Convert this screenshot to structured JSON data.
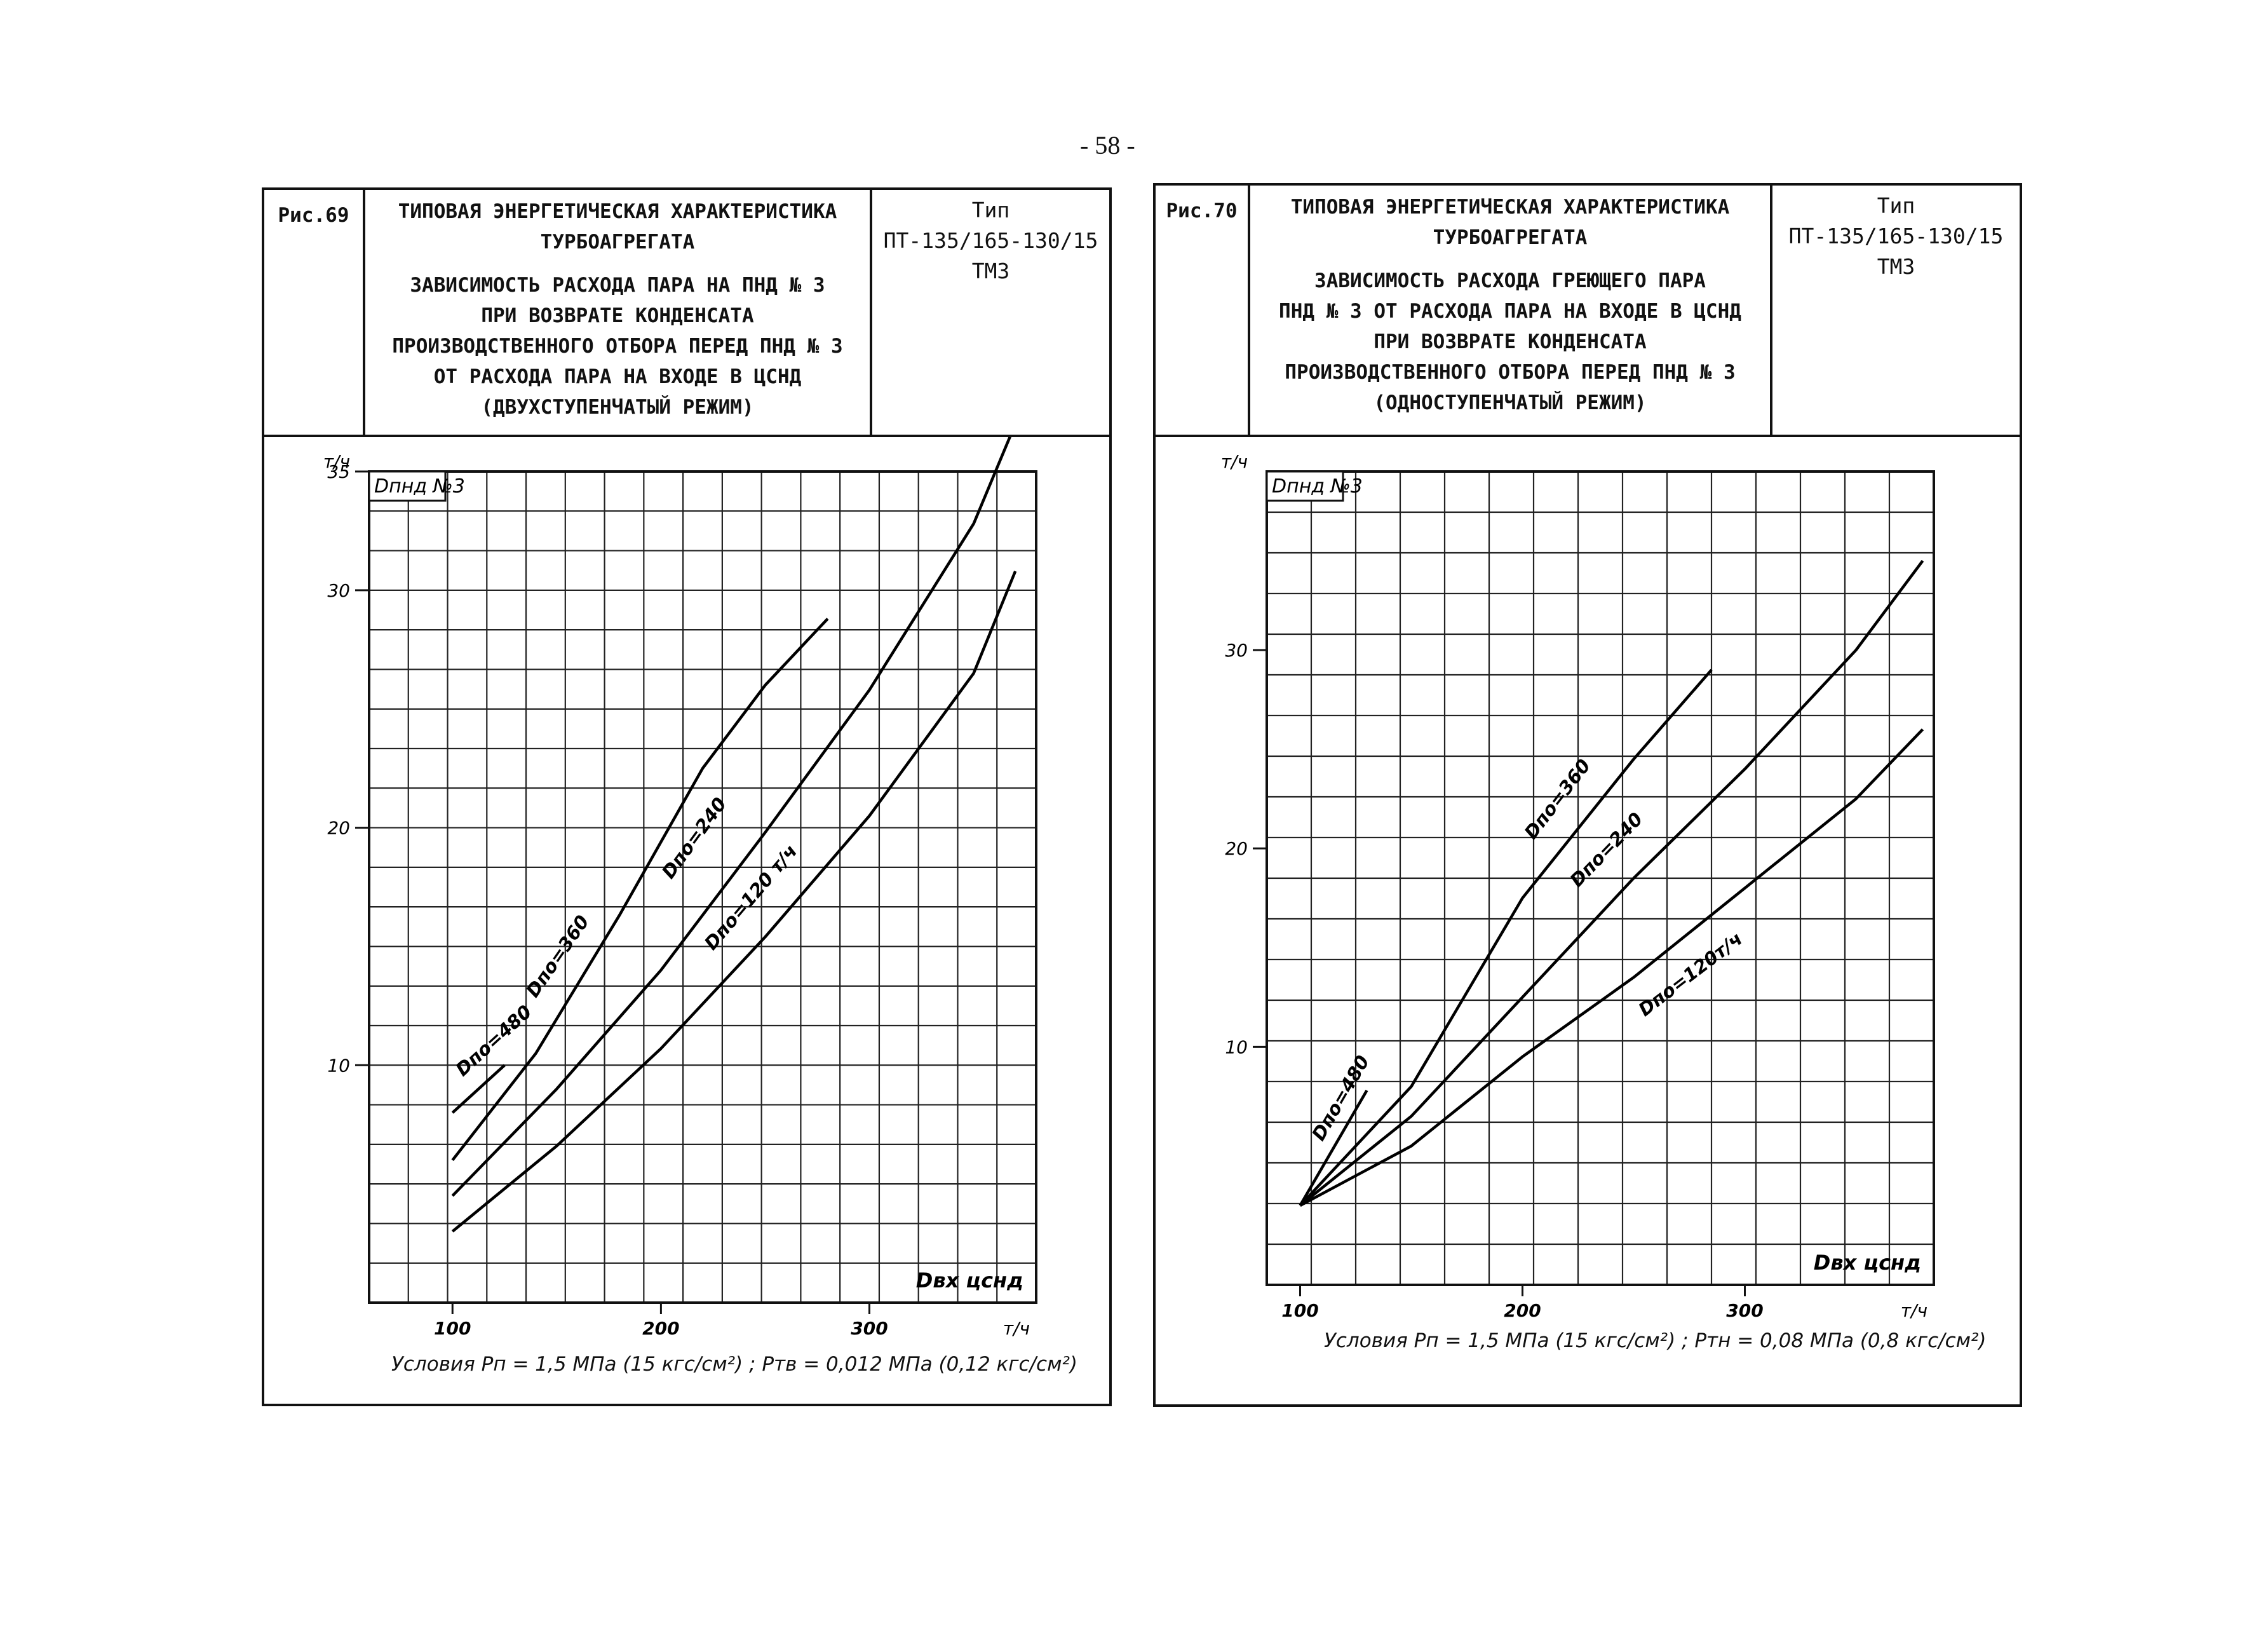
{
  "page_number": "- 58 -",
  "figures": [
    {
      "fig_label": "Рис.69",
      "title_lines": [
        "ТИПОВАЯ ЭНЕРГЕТИЧЕСКАЯ ХАРАКТЕРИСТИКА",
        "ТУРБОАГРЕГАТА"
      ],
      "subtitle_lines": [
        "ЗАВИСИМОСТЬ РАСХОДА ПАРА НА ПНД № 3",
        "ПРИ ВОЗВРАТЕ КОНДЕНСАТА",
        "ПРОИЗВОДСТВЕННОГО ОТБОРА ПЕРЕД ПНД № 3",
        "ОТ РАСХОДА ПАРА НА ВХОДЕ В ЦСНД",
        "(ДВУХСТУПЕНЧАТЫЙ РЕЖИМ)"
      ],
      "type_label": "Тип",
      "type_value": "ПТ-135/165-130/15",
      "manufacturer": "ТМЗ",
      "conditions": "Условия  Pп = 1,5 МПа (15 кгс/см²) ;  Pтв = 0,012 МПа (0,12 кгс/см²)"
    },
    {
      "fig_label": "Рис.70",
      "title_lines": [
        "ТИПОВАЯ ЭНЕРГЕТИЧЕСКАЯ ХАРАКТЕРИСТИКА",
        "ТУРБОАГРЕГАТА"
      ],
      "subtitle_lines": [
        "ЗАВИСИМОСТЬ РАСХОДА ГРЕЮЩЕГО ПАРА",
        "ПНД № 3 ОТ РАСХОДА ПАРА НА ВХОДЕ В ЦСНД",
        "ПРИ ВОЗВРАТЕ КОНДЕНСАТА",
        "ПРОИЗВОДСТВЕННОГО ОТБОРА ПЕРЕД ПНД № 3",
        "(ОДНОСТУПЕНЧАТЫЙ РЕЖИМ)"
      ],
      "type_label": "Тип",
      "type_value": "ПТ-135/165-130/15",
      "manufacturer": "ТМЗ",
      "conditions": "Условия  Pп = 1,5 МПа (15 кгс/см²) ;  Pтн = 0,08 МПа (0,8 кгс/см²)"
    }
  ],
  "chart_data": [
    {
      "type": "line",
      "title": "Dпнд №3",
      "ylabel": "т/ч",
      "xlabel": "Dвх цснд",
      "xunit": "т/ч",
      "xlim": [
        60,
        380
      ],
      "ylim": [
        0,
        35
      ],
      "xticks": [
        100,
        200,
        300
      ],
      "yticks": [
        10,
        20,
        30,
        35
      ],
      "ytick_labels": [
        "10",
        "20",
        "30",
        "35"
      ],
      "series": [
        {
          "name": "Dпо=480",
          "label": "Dпо=480",
          "x": [
            100,
            125
          ],
          "y": [
            8,
            10
          ]
        },
        {
          "name": "Dпо=360",
          "label": "Dпо=360",
          "x": [
            100,
            140,
            180,
            220,
            250,
            280
          ],
          "y": [
            6.0,
            10.5,
            16.3,
            22.5,
            26.0,
            28.8
          ]
        },
        {
          "name": "Dпо=240",
          "label": "Dпо=240",
          "x": [
            100,
            150,
            200,
            250,
            300,
            350,
            370
          ],
          "y": [
            4.5,
            9.0,
            14.0,
            19.8,
            25.8,
            32.8,
            37.0
          ]
        },
        {
          "name": "Dпо=120",
          "label": "Dпо=120 т/ч",
          "x": [
            100,
            150,
            200,
            250,
            300,
            350,
            370
          ],
          "y": [
            3.0,
            6.6,
            10.7,
            15.4,
            20.5,
            26.5,
            30.8
          ]
        }
      ]
    },
    {
      "type": "line",
      "title": "Dпнд №3",
      "ylabel": "т/ч",
      "xlabel": "Dвх цснд",
      "xunit": "т/ч",
      "xlim": [
        85,
        385
      ],
      "ylim": [
        -2,
        39
      ],
      "xticks": [
        100,
        200,
        300
      ],
      "yticks": [
        10,
        20,
        30
      ],
      "ytick_labels": [
        "10",
        "20",
        "30"
      ],
      "series": [
        {
          "name": "Dпо=480",
          "label": "Dпо=480",
          "x": [
            100,
            130
          ],
          "y": [
            2.0,
            7.8
          ]
        },
        {
          "name": "Dпо=360",
          "label": "Dпо=360",
          "x": [
            100,
            150,
            200,
            250,
            285
          ],
          "y": [
            2.0,
            8.0,
            17.5,
            24.5,
            29.0
          ]
        },
        {
          "name": "Dпо=240",
          "label": "Dпо=240",
          "x": [
            100,
            150,
            200,
            250,
            300,
            350,
            380
          ],
          "y": [
            2.0,
            6.5,
            12.5,
            18.5,
            24.0,
            30.0,
            34.5
          ]
        },
        {
          "name": "Dпо=120",
          "label": "Dпо=120т/ч",
          "x": [
            100,
            150,
            200,
            250,
            300,
            350,
            380
          ],
          "y": [
            2.0,
            5.0,
            9.5,
            13.5,
            18.0,
            22.5,
            26.0
          ]
        }
      ]
    }
  ]
}
